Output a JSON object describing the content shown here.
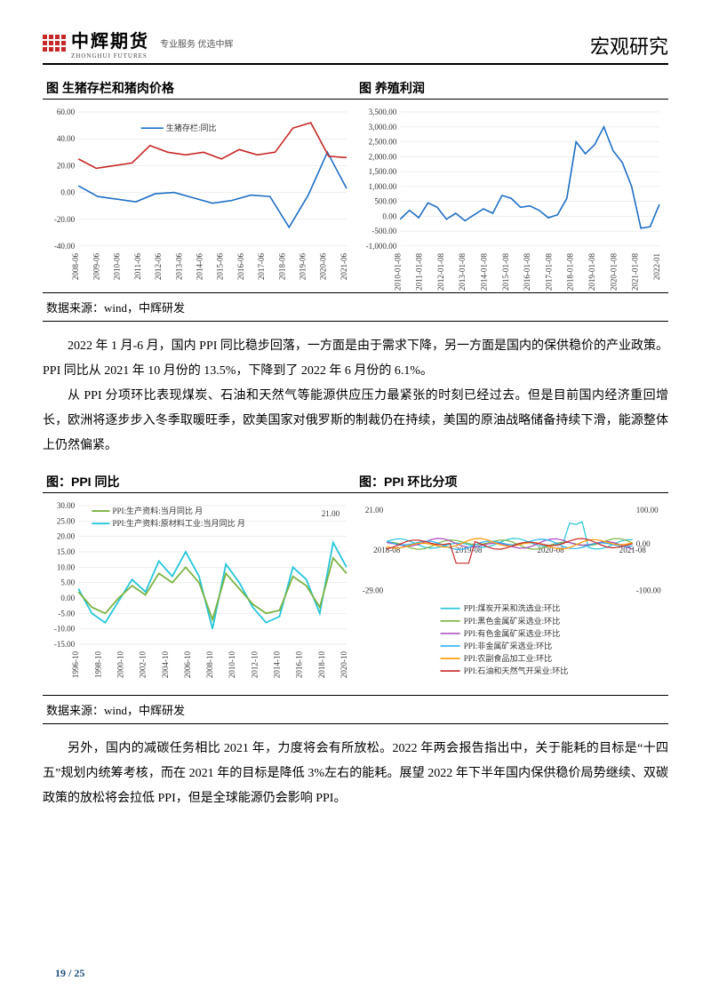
{
  "header": {
    "logo_cn": "中辉期货",
    "logo_en": "ZHONGHUI FUTURES",
    "logo_tag": "专业服务 优选中辉",
    "doc_title": "宏观研究"
  },
  "source_text": "数据来源：wind，中辉研发",
  "chart1": {
    "title": "图 生猪存栏和猪肉价格",
    "legend": "生猪存栏:同比",
    "ylim": [
      -40,
      60
    ],
    "ytick_step": 20,
    "xlabels": [
      "2008-06",
      "2009-06",
      "2010-06",
      "2011-06",
      "2012-06",
      "2013-06",
      "2014-06",
      "2015-06",
      "2016-06",
      "2017-06",
      "2018-06",
      "2019-06",
      "2020-06",
      "2021-06"
    ],
    "series_blue_color": "#1f6fc4",
    "series_red_color": "#c62828",
    "series_blue": [
      5,
      -3,
      -5,
      -7,
      -1,
      0,
      -4,
      -8,
      -6,
      -2,
      -3,
      -26,
      -2,
      30,
      3
    ],
    "series_red": [
      25,
      18,
      20,
      22,
      35,
      30,
      28,
      30,
      25,
      32,
      28,
      30,
      48,
      52,
      27,
      26
    ]
  },
  "chart2": {
    "title": "图 养殖利润",
    "ylim": [
      -1000,
      3500
    ],
    "ytick_step": 500,
    "xlabels": [
      "2010-01-08",
      "2011-01-08",
      "2012-01-08",
      "2013-01-08",
      "2014-01-08",
      "2015-01-08",
      "2016-01-08",
      "2017-01-08",
      "2018-01-08",
      "2019-01-08",
      "2020-01-08",
      "2021-01-08",
      "2022-01"
    ],
    "series_color": "#1f6fc4",
    "series": [
      -100,
      200,
      -50,
      450,
      300,
      -100,
      100,
      -150,
      50,
      250,
      100,
      700,
      600,
      300,
      350,
      200,
      -50,
      50,
      600,
      2500,
      2100,
      2400,
      3000,
      2200,
      1800,
      1000,
      -400,
      -350,
      400
    ]
  },
  "para1": [
    "2022 年 1 月-6 月，国内 PPI 同比稳步回落，一方面是由于需求下降，另一方面是国内的保供稳价的产业政策。PPI 同比从 2021 年 10 月份的 13.5%，下降到了 2022 年 6 月份的 6.1%。",
    "从 PPI 分项环比表现煤炭、石油和天然气等能源供应压力最紧张的时刻已经过去。但是目前国内经济重回增长，欧洲将逐步步入冬季取暖旺季，欧美国家对俄罗斯的制裁仍在持续，美国的原油战略储备持续下滑，能源整体上仍然偏紧。"
  ],
  "chart3": {
    "title": "图：PPI 同比",
    "ylim": [
      -15,
      30
    ],
    "ytick_step": 5,
    "xlabels": [
      "1996-10",
      "1998-10",
      "2000-10",
      "2002-10",
      "2004-10",
      "2006-10",
      "2008-10",
      "2010-10",
      "2012-10",
      "2014-10",
      "2016-10",
      "2018-10",
      "2020-10"
    ],
    "legend1": "PPI:生产资料:当月同比 月",
    "legend2": "PPI:生产资料:原材料工业:当月同比 月",
    "color1": "#7cb342",
    "color2": "#26c6da",
    "note": "21.00",
    "series1": [
      2,
      -3,
      -5,
      0,
      4,
      1,
      8,
      5,
      10,
      5,
      -7,
      8,
      3,
      -2,
      -5,
      -4,
      7,
      4,
      -3,
      13,
      8
    ],
    "series2": [
      3,
      -5,
      -8,
      -1,
      6,
      2,
      12,
      7,
      15,
      7,
      -10,
      11,
      5,
      -3,
      -8,
      -6,
      10,
      6,
      -5,
      18,
      10
    ]
  },
  "chart4": {
    "title": "图：PPI 环比分项",
    "ylim_left": [
      -29,
      21
    ],
    "ylim_right": [
      -100,
      100
    ],
    "xlabels": [
      "2018-08",
      "2019-08",
      "2020-08",
      "2021-08"
    ],
    "legend": [
      {
        "label": "PPI:煤炭开采和洗选业:环比",
        "color": "#26c6da"
      },
      {
        "label": "PPI:黑色金属矿采选业:环比",
        "color": "#7cb342"
      },
      {
        "label": "PPI:有色金属矿采选业:环比",
        "color": "#ab47bc"
      },
      {
        "label": "PPI:非金属矿采选业:环比",
        "color": "#29b6f6"
      },
      {
        "label": "PPI:农副食品加工业:环比",
        "color": "#ff9800"
      },
      {
        "label": "PPI:石油和天然气开采业:环比",
        "color": "#c62828"
      }
    ]
  },
  "para2": [
    "另外，国内的减碳任务相比 2021 年，力度将会有所放松。2022 年两会报告指出中，关于能耗的目标是“十四五”规划内统筹考核，而在 2021 年的目标是降低 3%左右的能耗。展望 2022 年下半年国内保供稳价局势继续、双碳政策的放松将会拉低 PPI，但是全球能源仍会影响 PPI。"
  ],
  "page": "19 / 25"
}
